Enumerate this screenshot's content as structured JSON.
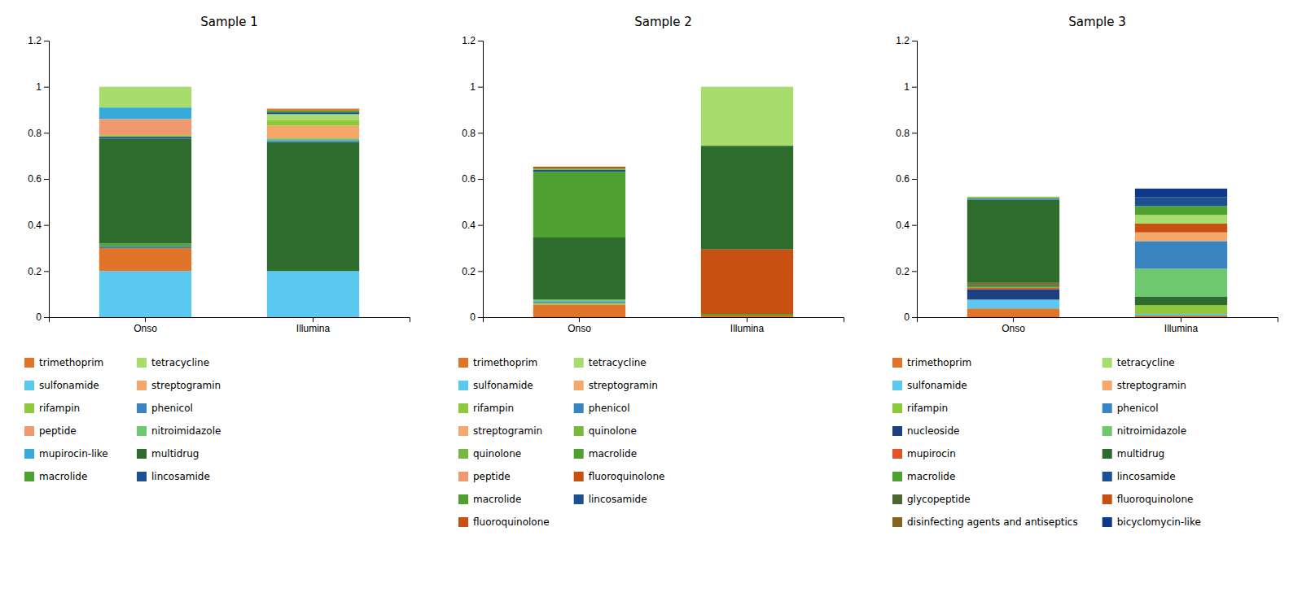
{
  "chart_data": [
    {
      "type": "bar",
      "title": "Sample 1",
      "stacked": true,
      "grid": false,
      "categories": [
        "Onso",
        "Illumina"
      ],
      "ylim": [
        0,
        1.2
      ],
      "yticks": [
        0,
        0.2,
        0.4,
        0.6,
        0.8,
        1,
        1.2
      ],
      "series": [
        {
          "name": "sulfonamide",
          "color": "#5BC8F0",
          "values": [
            0.2,
            null
          ]
        },
        {
          "name": "trimethoprim",
          "color": "#E07428",
          "values": [
            0.1,
            null
          ]
        },
        {
          "name": "phenicol",
          "color": "#3A84C0",
          "values": [
            0.008,
            null
          ]
        },
        {
          "name": "macrolide",
          "color": "#4EA030",
          "values": [
            0.012,
            null
          ]
        },
        {
          "name": "multidrug",
          "color": "#2E6C2E",
          "values": [
            0.455,
            null
          ]
        },
        {
          "name": "lincosamide",
          "color": "#1C5090",
          "values": [
            0.008,
            null
          ]
        },
        {
          "name": "rifampin",
          "color": "#8EC83C",
          "values": [
            0.007,
            null
          ]
        },
        {
          "name": "peptide",
          "color": "#F09870",
          "values": [
            0.07,
            null
          ]
        },
        {
          "name": "mupirocin-like",
          "color": "#38AADA",
          "values": [
            0.05,
            null
          ]
        },
        {
          "name": "tetracycline",
          "color": "#A8DC6C",
          "values": [
            0.09,
            null
          ]
        },
        {
          "name": "sulfonamide",
          "color": "#5BC8F0",
          "values": [
            null,
            0.2
          ]
        },
        {
          "name": "multidrug",
          "color": "#2E6C2E",
          "values": [
            null,
            0.56
          ]
        },
        {
          "name": "phenicol",
          "color": "#3A84C0",
          "values": [
            null,
            0.008
          ]
        },
        {
          "name": "nitroimidazole",
          "color": "#6EC870",
          "values": [
            null,
            0.008
          ]
        },
        {
          "name": "streptogramin",
          "color": "#F4A86C",
          "values": [
            null,
            0.055
          ]
        },
        {
          "name": "rifampin",
          "color": "#8EC83C",
          "values": [
            null,
            0.025
          ]
        },
        {
          "name": "tetracycline",
          "color": "#A8DC6C",
          "values": [
            null,
            0.025
          ]
        },
        {
          "name": "lincosamide",
          "color": "#1C5090",
          "values": [
            null,
            0.008
          ]
        },
        {
          "name": "macrolide",
          "color": "#4EA030",
          "values": [
            null,
            0.008
          ]
        },
        {
          "name": "trimethoprim",
          "color": "#E07428",
          "values": [
            null,
            0.008
          ]
        }
      ],
      "legend_entries": [
        [
          {
            "name": "trimethoprim",
            "color": "#E07428"
          },
          {
            "name": "sulfonamide",
            "color": "#5BC8F0"
          },
          {
            "name": "rifampin",
            "color": "#8EC83C"
          },
          {
            "name": "peptide",
            "color": "#F09870"
          },
          {
            "name": "mupirocin-like",
            "color": "#38AADA"
          },
          {
            "name": "macrolide",
            "color": "#4EA030"
          }
        ],
        [
          {
            "name": "tetracycline",
            "color": "#A8DC6C"
          },
          {
            "name": "streptogramin",
            "color": "#F4A86C"
          },
          {
            "name": "phenicol",
            "color": "#3A84C0"
          },
          {
            "name": "nitroimidazole",
            "color": "#6EC870"
          },
          {
            "name": "multidrug",
            "color": "#2E6C2E"
          },
          {
            "name": "lincosamide",
            "color": "#1C5090"
          }
        ]
      ]
    },
    {
      "type": "bar",
      "title": "Sample 2",
      "stacked": true,
      "grid": false,
      "categories": [
        "Onso",
        "Illumina"
      ],
      "ylim": [
        0,
        1.2
      ],
      "yticks": [
        0,
        0.2,
        0.4,
        0.6,
        0.8,
        1,
        1.2
      ],
      "series": [
        {
          "name": "trimethoprim",
          "color": "#E07428",
          "values": [
            0.055,
            null
          ]
        },
        {
          "name": "rifampin",
          "color": "#8EC83C",
          "values": [
            0.007,
            null
          ]
        },
        {
          "name": "phenicol",
          "color": "#3A84C0",
          "values": [
            0.007,
            null
          ]
        },
        {
          "name": "nitroimidazole",
          "color": "#6EC870",
          "values": [
            0.007,
            null
          ]
        },
        {
          "name": "multidrug",
          "color": "#2E6C2E",
          "values": [
            0.27,
            null
          ]
        },
        {
          "name": "macrolide",
          "color": "#4EA030",
          "values": [
            0.285,
            null
          ]
        },
        {
          "name": "lincosamide",
          "color": "#1C5090",
          "values": [
            0.008,
            null
          ]
        },
        {
          "name": "quinolone",
          "color": "#78B840",
          "values": [
            0.007,
            null
          ]
        },
        {
          "name": "fluoroquinolone",
          "color": "#C85010",
          "values": [
            0.007,
            null
          ]
        },
        {
          "name": "trimethoprim",
          "color": "#E07428",
          "values": [
            null,
            0.007
          ]
        },
        {
          "name": "macrolide",
          "color": "#4EA030",
          "values": [
            null,
            0.007
          ]
        },
        {
          "name": "fluoroquinolone",
          "color": "#C85010",
          "values": [
            null,
            0.28
          ]
        },
        {
          "name": "multidrug",
          "color": "#2E6C2E",
          "values": [
            null,
            0.45
          ]
        },
        {
          "name": "tetracycline",
          "color": "#A8DC6C",
          "values": [
            null,
            0.256
          ]
        }
      ],
      "legend_entries": [
        [
          {
            "name": "trimethoprim",
            "color": "#E07428"
          },
          {
            "name": "sulfonamide",
            "color": "#5BC8F0"
          },
          {
            "name": "rifampin",
            "color": "#8EC83C"
          },
          {
            "name": "streptogramin",
            "color": "#F4A86C"
          },
          {
            "name": "quinolone",
            "color": "#78B840"
          },
          {
            "name": "peptide",
            "color": "#F09870"
          },
          {
            "name": "macrolide",
            "color": "#4EA030"
          },
          {
            "name": "fluoroquinolone",
            "color": "#C85010"
          }
        ],
        [
          {
            "name": "tetracycline",
            "color": "#A8DC6C"
          },
          {
            "name": "streptogramin",
            "color": "#F4A86C"
          },
          {
            "name": "phenicol",
            "color": "#3A84C0"
          },
          {
            "name": "quinolone",
            "color": "#78B840"
          },
          {
            "name": "macrolide",
            "color": "#4EA030"
          },
          {
            "name": "fluoroquinolone",
            "color": "#C85010"
          },
          {
            "name": "lincosamide",
            "color": "#1C5090"
          }
        ]
      ]
    },
    {
      "type": "bar",
      "title": "Sample 3",
      "stacked": true,
      "grid": false,
      "categories": [
        "Onso",
        "Illumina"
      ],
      "ylim": [
        0,
        1.2
      ],
      "yticks": [
        0,
        0.2,
        0.4,
        0.6,
        0.8,
        1,
        1.2
      ],
      "series": [
        {
          "name": "trimethoprim",
          "color": "#E07428",
          "values": [
            0.038,
            null
          ]
        },
        {
          "name": "sulfonamide",
          "color": "#5BC8F0",
          "values": [
            0.038,
            null
          ]
        },
        {
          "name": "nucleoside",
          "color": "#1C4080",
          "values": [
            0.045,
            null
          ]
        },
        {
          "name": "mupirocin",
          "color": "#E05428",
          "values": [
            0.007,
            null
          ]
        },
        {
          "name": "macrolide",
          "color": "#4EA030",
          "values": [
            0.007,
            null
          ]
        },
        {
          "name": "glycopeptide",
          "color": "#4A6830",
          "values": [
            0.007,
            null
          ]
        },
        {
          "name": "disinfecting agents and antiseptics",
          "color": "#846420",
          "values": [
            0.007,
            null
          ]
        },
        {
          "name": "multidrug",
          "color": "#2E6C2E",
          "values": [
            0.36,
            null
          ]
        },
        {
          "name": "phenicol",
          "color": "#3A84C0",
          "values": [
            0.007,
            null
          ]
        },
        {
          "name": "rifampin",
          "color": "#8EC83C",
          "values": [
            0.007,
            null
          ]
        },
        {
          "name": "trimethoprim",
          "color": "#E07428",
          "values": [
            null,
            0.007
          ]
        },
        {
          "name": "sulfonamide",
          "color": "#5BC8F0",
          "values": [
            null,
            0.007
          ]
        },
        {
          "name": "rifampin",
          "color": "#8EC83C",
          "values": [
            null,
            0.038
          ]
        },
        {
          "name": "multidrug",
          "color": "#2E6C2E",
          "values": [
            null,
            0.038
          ]
        },
        {
          "name": "nitroimidazole",
          "color": "#6EC870",
          "values": [
            null,
            0.12
          ]
        },
        {
          "name": "phenicol",
          "color": "#3A84C0",
          "values": [
            null,
            0.12
          ]
        },
        {
          "name": "streptogramin",
          "color": "#F4A86C",
          "values": [
            null,
            0.038
          ]
        },
        {
          "name": "fluoroquinolone",
          "color": "#C85010",
          "values": [
            null,
            0.038
          ]
        },
        {
          "name": "tetracycline",
          "color": "#A8DC6C",
          "values": [
            null,
            0.038
          ]
        },
        {
          "name": "macrolide",
          "color": "#4EA030",
          "values": [
            null,
            0.038
          ]
        },
        {
          "name": "lincosamide",
          "color": "#1C5090",
          "values": [
            null,
            0.038
          ]
        },
        {
          "name": "bicyclomycin-like",
          "color": "#103888",
          "values": [
            null,
            0.038
          ]
        }
      ],
      "legend_entries": [
        [
          {
            "name": "trimethoprim",
            "color": "#E07428"
          },
          {
            "name": "sulfonamide",
            "color": "#5BC8F0"
          },
          {
            "name": "rifampin",
            "color": "#8EC83C"
          },
          {
            "name": "nucleoside",
            "color": "#1C4080"
          },
          {
            "name": "mupirocin",
            "color": "#E05428"
          },
          {
            "name": "macrolide",
            "color": "#4EA030"
          },
          {
            "name": "glycopeptide",
            "color": "#4A6830"
          },
          {
            "name": "disinfecting agents and antiseptics",
            "color": "#846420"
          }
        ],
        [
          {
            "name": "tetracycline",
            "color": "#A8DC6C"
          },
          {
            "name": "streptogramin",
            "color": "#F4A86C"
          },
          {
            "name": "phenicol",
            "color": "#3A84C0"
          },
          {
            "name": "nitroimidazole",
            "color": "#6EC870"
          },
          {
            "name": "multidrug",
            "color": "#2E6C2E"
          },
          {
            "name": "lincosamide",
            "color": "#1C5090"
          },
          {
            "name": "fluoroquinolone",
            "color": "#C85010"
          },
          {
            "name": "bicyclomycin-like",
            "color": "#103888"
          }
        ]
      ]
    }
  ]
}
